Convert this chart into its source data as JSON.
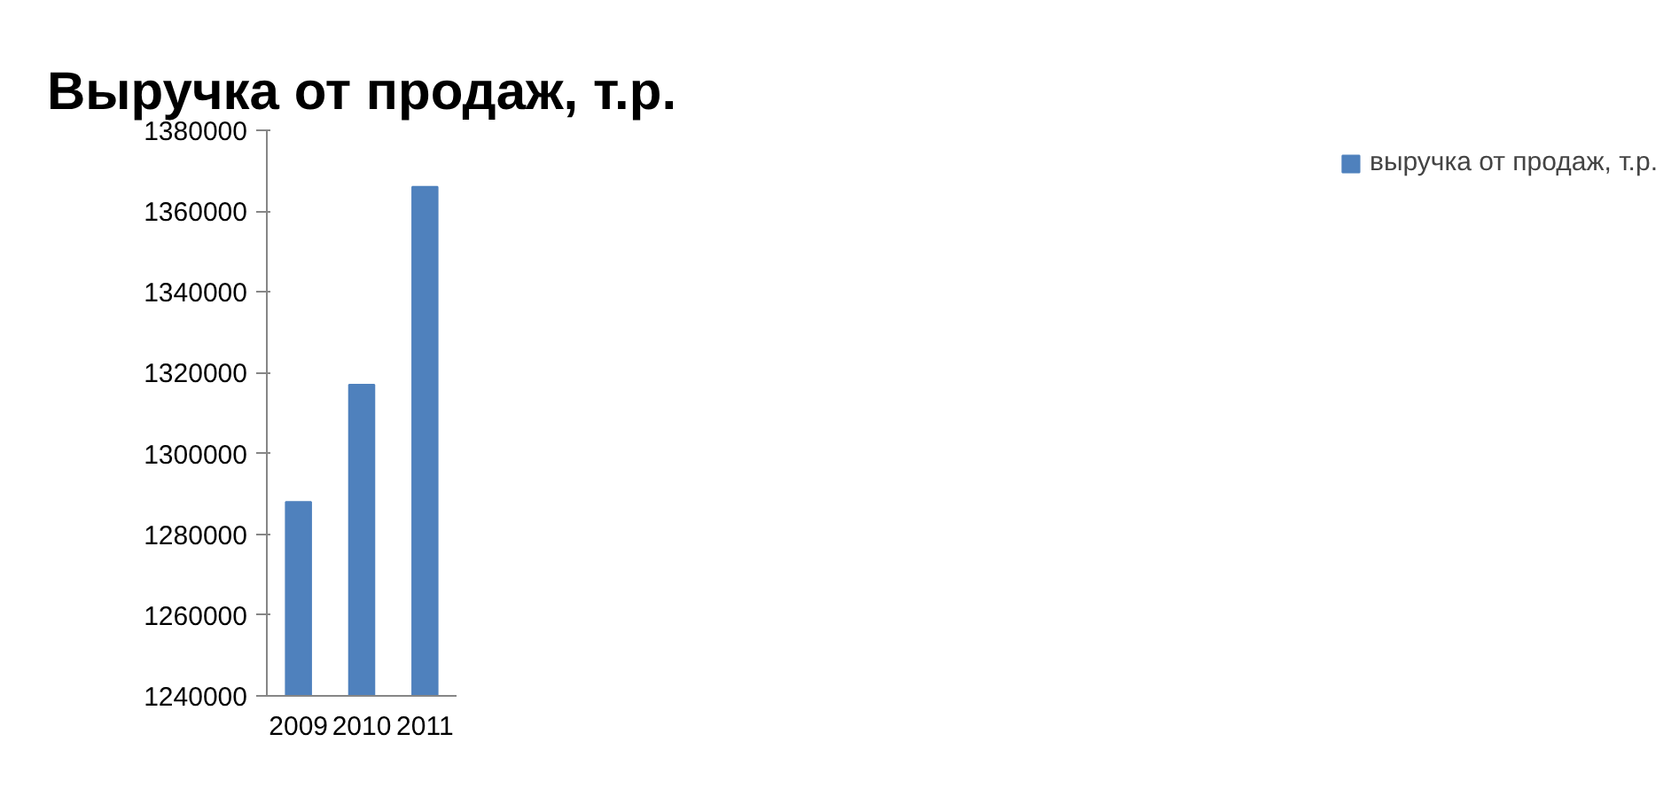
{
  "chart_data": {
    "type": "bar",
    "title": "Выручка от продаж, т.р.",
    "categories": [
      "2009",
      "2010",
      "2011"
    ],
    "series": [
      {
        "name": "выручка от продаж, т.р.",
        "color": "#4f81bd",
        "values": [
          1288000,
          1317000,
          1366000
        ]
      }
    ],
    "ylim": [
      1240000,
      1380000
    ],
    "yticks": [
      1240000,
      1260000,
      1280000,
      1300000,
      1320000,
      1340000,
      1360000,
      1380000
    ],
    "grid": false,
    "legend": "right"
  }
}
